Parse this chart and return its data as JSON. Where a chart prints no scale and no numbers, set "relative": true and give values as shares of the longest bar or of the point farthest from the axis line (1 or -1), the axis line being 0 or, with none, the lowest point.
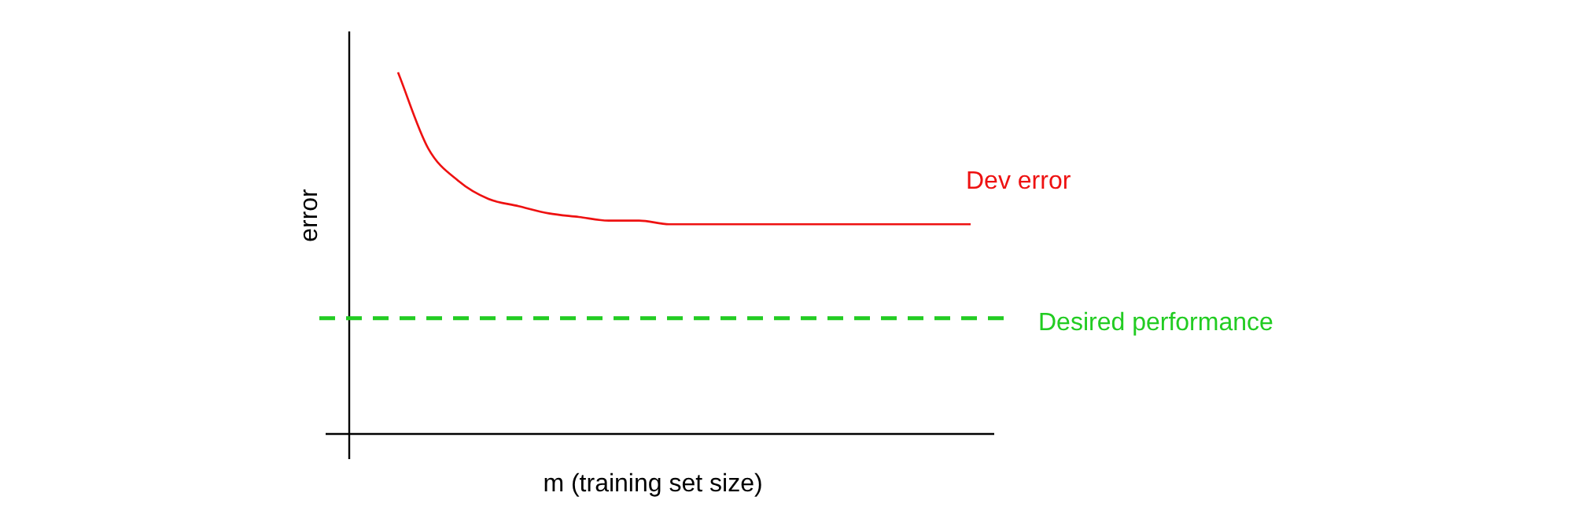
{
  "chart_data": {
    "type": "line",
    "relative": true,
    "xlabel": "m (training set size)",
    "ylabel": "error",
    "categories": [
      null,
      null,
      null,
      null,
      null,
      null,
      null,
      null,
      null,
      null,
      null,
      null,
      null,
      null,
      null,
      null,
      null,
      null,
      null,
      null
    ],
    "series": [
      {
        "name": "Dev error",
        "color": "#ee1111",
        "values": [
          1,
          0.79,
          0.7,
          0.65,
          0.63,
          0.61,
          0.6,
          0.59,
          0.59,
          0.58,
          0.58,
          0.58,
          0.58,
          0.58,
          0.58,
          0.58,
          0.58,
          0.58,
          0.58,
          0.58
        ]
      }
    ],
    "ref_lines": [
      {
        "axis": "y",
        "value": 0.32,
        "label": "Desired performance",
        "color": "#22cc22",
        "line_style": "dashed"
      }
    ],
    "legend": false,
    "marker": "none",
    "line_style": "solid"
  }
}
